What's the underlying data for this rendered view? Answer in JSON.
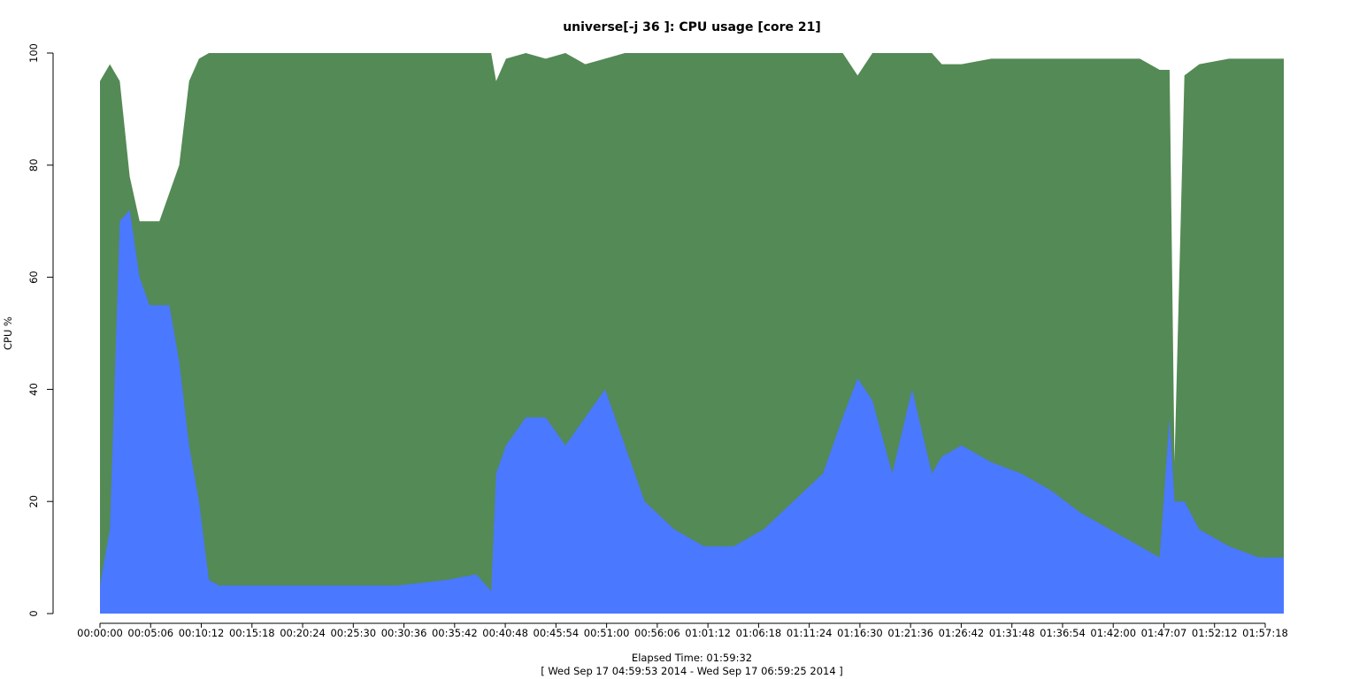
{
  "chart_data": {
    "type": "area",
    "title": "universe[-j 36  ]: CPU usage [core 21]",
    "xlabel": "Elapsed Time: 01:59:32",
    "xsublabel": "[ Wed Sep 17 04:59:53 2014 - Wed Sep 17 06:59:25 2014 ]",
    "ylabel": "CPU %",
    "ylim": [
      0,
      100
    ],
    "y_ticks": [
      "0",
      "20",
      "40",
      "60",
      "80",
      "100"
    ],
    "xlim_seconds": [
      0,
      7172
    ],
    "x_ticks": [
      "00:00:00",
      "00:05:06",
      "00:10:12",
      "00:15:18",
      "00:20:24",
      "00:25:30",
      "00:30:36",
      "00:35:42",
      "00:40:48",
      "00:45:54",
      "00:51:00",
      "00:56:06",
      "01:01:12",
      "01:06:18",
      "01:11:24",
      "01:16:30",
      "01:21:36",
      "01:26:42",
      "01:31:48",
      "01:36:54",
      "01:42:00",
      "01:47:07",
      "01:52:12",
      "01:57:18"
    ],
    "colors": {
      "lower": "#4a78ff",
      "upper": "#548a55"
    },
    "x": [
      "00:00:00",
      "00:01:00",
      "00:02:00",
      "00:03:00",
      "00:04:00",
      "00:05:00",
      "00:06:00",
      "00:07:00",
      "00:08:00",
      "00:09:00",
      "00:10:00",
      "00:11:00",
      "00:12:00",
      "00:15:00",
      "00:20:00",
      "00:25:00",
      "00:30:00",
      "00:35:00",
      "00:38:00",
      "00:39:30",
      "00:40:00",
      "00:41:00",
      "00:43:00",
      "00:45:00",
      "00:47:00",
      "00:49:00",
      "00:51:00",
      "00:53:00",
      "00:55:00",
      "00:58:00",
      "01:01:00",
      "01:04:00",
      "01:07:00",
      "01:10:00",
      "01:13:00",
      "01:15:00",
      "01:16:30",
      "01:18:00",
      "01:20:00",
      "01:22:00",
      "01:24:00",
      "01:25:00",
      "01:27:00",
      "01:30:00",
      "01:33:00",
      "01:36:00",
      "01:39:00",
      "01:42:00",
      "01:45:00",
      "01:47:00",
      "01:48:00",
      "01:48:30",
      "01:49:30",
      "01:51:00",
      "01:54:00",
      "01:57:00",
      "01:59:32"
    ],
    "series": [
      {
        "values": [
          5,
          15,
          70,
          72,
          60,
          55,
          55,
          55,
          45,
          30,
          20,
          6,
          5,
          5,
          5,
          5,
          5,
          6,
          7,
          4,
          25,
          30,
          35,
          35,
          30,
          35,
          40,
          30,
          20,
          15,
          12,
          12,
          15,
          20,
          25,
          35,
          42,
          38,
          25,
          40,
          25,
          28,
          30,
          27,
          25,
          22,
          18,
          15,
          12,
          10,
          35,
          20,
          20,
          15,
          12,
          10,
          10
        ]
      },
      {
        "values": [
          95,
          98,
          95,
          78,
          70,
          70,
          70,
          75,
          80,
          95,
          99,
          100,
          100,
          100,
          100,
          100,
          100,
          100,
          100,
          100,
          95,
          99,
          100,
          99,
          100,
          98,
          99,
          100,
          100,
          100,
          100,
          100,
          100,
          100,
          100,
          100,
          96,
          100,
          100,
          100,
          100,
          98,
          98,
          99,
          99,
          99,
          99,
          99,
          99,
          97,
          97,
          27,
          96,
          98,
          99,
          99,
          99
        ]
      }
    ]
  }
}
